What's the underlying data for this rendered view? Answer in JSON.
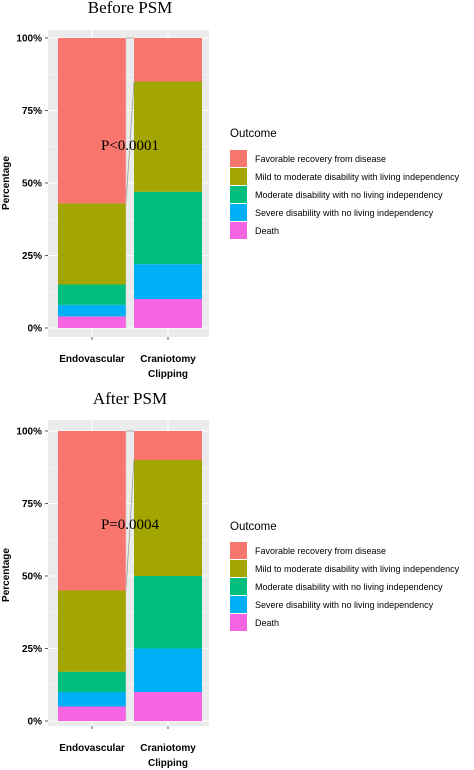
{
  "chart_data": [
    {
      "type": "bar",
      "stacked": true,
      "percent": true,
      "title": "Before PSM",
      "xlabel": "",
      "ylabel": "Percentage",
      "ylim": [
        0,
        100
      ],
      "yticks": [
        "0%",
        "25%",
        "50%",
        "75%",
        "100%"
      ],
      "categories": [
        "Endovascular",
        "Craniotomy Clipping"
      ],
      "category_lines": [
        [
          "Endovascular"
        ],
        [
          "Craniotomy",
          "Clipping"
        ]
      ],
      "annotation": "P<0.0001",
      "legend_title": "Outcome",
      "legend_position": "right",
      "grid": true,
      "series": [
        {
          "name": "Death",
          "color": "#f564e3",
          "values": [
            4,
            10
          ]
        },
        {
          "name": "Severe disability with no living independency",
          "color": "#00b0f6",
          "values": [
            4,
            12
          ]
        },
        {
          "name": "Moderate disability with no living independency",
          "color": "#00bf7d",
          "values": [
            7,
            25
          ]
        },
        {
          "name": "Mild to moderate disability with living independency",
          "color": "#a3a500",
          "values": [
            28,
            38
          ]
        },
        {
          "name": "Favorable recovery from disease",
          "color": "#f8766d",
          "values": [
            57,
            15
          ]
        }
      ]
    },
    {
      "type": "bar",
      "stacked": true,
      "percent": true,
      "title": "After PSM",
      "xlabel": "",
      "ylabel": "Percentage",
      "ylim": [
        0,
        100
      ],
      "yticks": [
        "0%",
        "25%",
        "50%",
        "75%",
        "100%"
      ],
      "categories": [
        "Endovascular",
        "Craniotomy Clipping"
      ],
      "category_lines": [
        [
          "Endovascular"
        ],
        [
          "Craniotomy",
          "Clipping"
        ]
      ],
      "annotation": "P=0.0004",
      "legend_title": "Outcome",
      "legend_position": "right",
      "grid": true,
      "series": [
        {
          "name": "Death",
          "color": "#f564e3",
          "values": [
            5,
            10
          ]
        },
        {
          "name": "Severe disability with no living independency",
          "color": "#00b0f6",
          "values": [
            5,
            15
          ]
        },
        {
          "name": "Moderate disability with no living independency",
          "color": "#00bf7d",
          "values": [
            7,
            25
          ]
        },
        {
          "name": "Mild to moderate disability with living independency",
          "color": "#a3a500",
          "values": [
            28,
            40
          ]
        },
        {
          "name": "Favorable recovery from disease",
          "color": "#f8766d",
          "values": [
            55,
            10
          ]
        }
      ]
    }
  ]
}
